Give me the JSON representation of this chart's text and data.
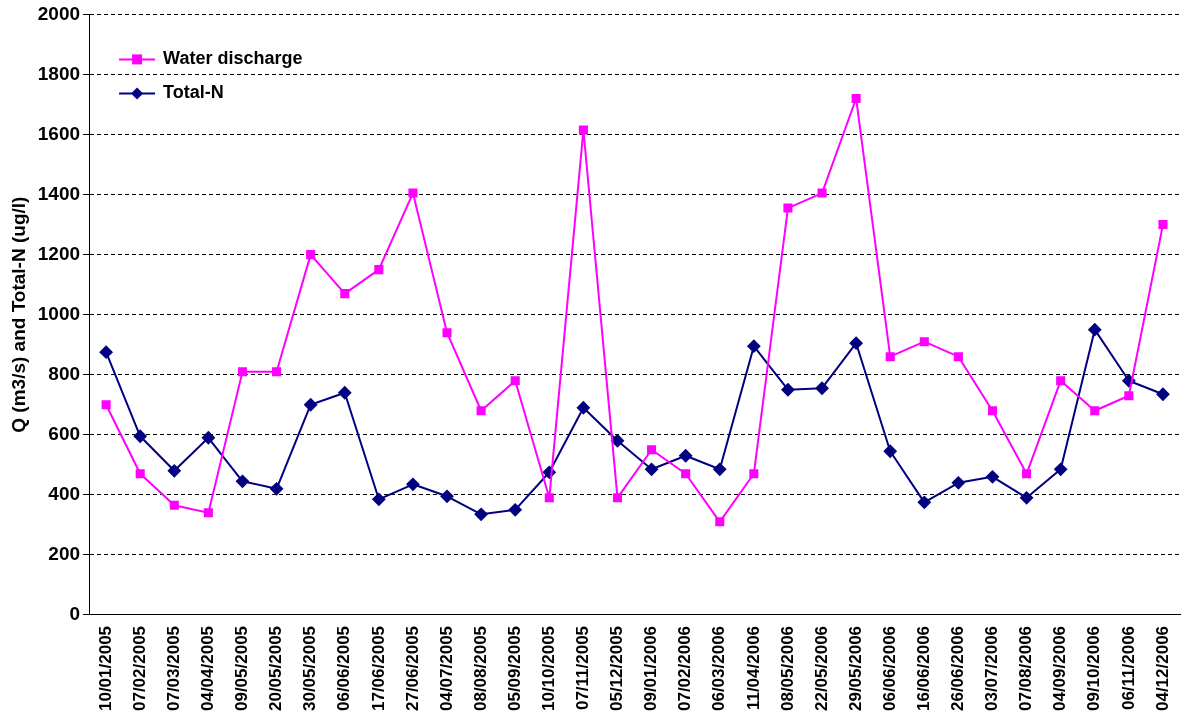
{
  "chart_data": {
    "type": "line",
    "ylabel": "Q (m3/s) and Total-N (ug/l)",
    "categories": [
      "10/01/2005",
      "07/02/2005",
      "07/03/2005",
      "04/04/2005",
      "09/05/2005",
      "20/05/2005",
      "30/05/2005",
      "06/06/2005",
      "17/06/2005",
      "27/06/2005",
      "04/07/2005",
      "08/08/2005",
      "05/09/2005",
      "10/10/2005",
      "07/11/2005",
      "05/12/2005",
      "09/01/2006",
      "07/02/2006",
      "06/03/2006",
      "11/04/2006",
      "08/05/2006",
      "22/05/2006",
      "29/05/2006",
      "06/06/2006",
      "16/06/2006",
      "26/06/2006",
      "03/07/2006",
      "07/08/2006",
      "04/09/2006",
      "09/10/2006",
      "06/11/2006",
      "04/12/2006"
    ],
    "series": [
      {
        "name": "Water discharge",
        "color": "#ff00ff",
        "marker": "square",
        "values": [
          700,
          470,
          365,
          340,
          810,
          810,
          1200,
          1070,
          1150,
          1405,
          940,
          680,
          780,
          390,
          1615,
          390,
          550,
          470,
          310,
          470,
          1355,
          1405,
          1720,
          860,
          910,
          860,
          680,
          470,
          780,
          680,
          730,
          1300
        ]
      },
      {
        "name": "Total-N",
        "color": "#000080",
        "marker": "diamond",
        "values": [
          875,
          595,
          480,
          590,
          445,
          420,
          700,
          740,
          385,
          435,
          395,
          335,
          350,
          475,
          690,
          580,
          485,
          530,
          485,
          895,
          750,
          755,
          905,
          545,
          375,
          440,
          460,
          390,
          485,
          950,
          780,
          735
        ]
      }
    ],
    "ylim": [
      0,
      2000
    ],
    "yticks": [
      0,
      200,
      400,
      600,
      800,
      1000,
      1200,
      1400,
      1600,
      1800,
      2000
    ],
    "grid": "y",
    "legend": "top left",
    "line_style": "solid"
  }
}
